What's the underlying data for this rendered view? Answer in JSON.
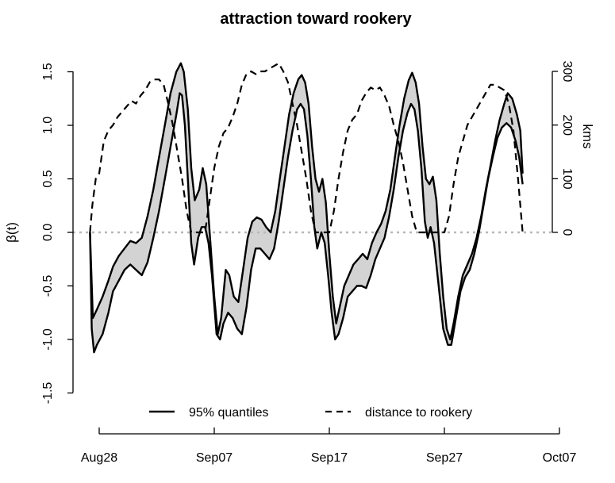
{
  "chart_data": {
    "type": "line",
    "title": "attraction toward rookery",
    "ylabel": "β(t)",
    "y2label": "kms",
    "xlim": [
      0,
      40
    ],
    "ylim": [
      -1.5,
      1.5
    ],
    "y2lim": [
      0,
      300
    ],
    "x_ticks": [
      {
        "x": 0,
        "label": "Aug28"
      },
      {
        "x": 10,
        "label": "Sep07"
      },
      {
        "x": 20,
        "label": "Sep17"
      },
      {
        "x": 30,
        "label": "Sep27"
      },
      {
        "x": 40,
        "label": "Oct07"
      }
    ],
    "y_ticks": [
      {
        "y": -1.5,
        "label": "-1.5"
      },
      {
        "y": -1.0,
        "label": "-1.0"
      },
      {
        "y": -0.5,
        "label": "-0.5"
      },
      {
        "y": 0.0,
        "label": "0.0"
      },
      {
        "y": 0.5,
        "label": "0.5"
      },
      {
        "y": 1.0,
        "label": "1.0"
      },
      {
        "y": 1.5,
        "label": "1.5"
      }
    ],
    "y2_ticks": [
      {
        "y": 0,
        "label": "0"
      },
      {
        "y": 100,
        "label": "100"
      },
      {
        "y": 200,
        "label": "200"
      },
      {
        "y": 300,
        "label": "300"
      }
    ],
    "reference_line": {
      "y": 0.0,
      "style": "dotted",
      "color": "#b8b8b8"
    },
    "legend": {
      "position": "bottom",
      "entries": [
        {
          "label": "95% quantiles",
          "style": "solid"
        },
        {
          "label": "distance to rookery",
          "style": "dashed"
        }
      ]
    },
    "series": [
      {
        "name": "upper 95% quantile",
        "axis": "left",
        "points": [
          [
            -0.8,
            0.0
          ],
          [
            -0.55,
            -0.8
          ],
          [
            -0.2,
            -0.72
          ],
          [
            0.3,
            -0.6
          ],
          [
            0.8,
            -0.45
          ],
          [
            1.2,
            -0.32
          ],
          [
            1.7,
            -0.22
          ],
          [
            2.2,
            -0.15
          ],
          [
            2.7,
            -0.08
          ],
          [
            3.2,
            -0.1
          ],
          [
            3.7,
            -0.05
          ],
          [
            4.2,
            0.15
          ],
          [
            4.7,
            0.4
          ],
          [
            5.2,
            0.7
          ],
          [
            5.7,
            1.0
          ],
          [
            6.2,
            1.3
          ],
          [
            6.7,
            1.5
          ],
          [
            7.1,
            1.58
          ],
          [
            7.35,
            1.5
          ],
          [
            7.7,
            1.15
          ],
          [
            8.0,
            0.6
          ],
          [
            8.3,
            0.3
          ],
          [
            8.7,
            0.4
          ],
          [
            9.0,
            0.6
          ],
          [
            9.3,
            0.45
          ],
          [
            9.6,
            0.0
          ],
          [
            10.0,
            -0.6
          ],
          [
            10.3,
            -0.95
          ],
          [
            10.6,
            -0.8
          ],
          [
            11.0,
            -0.35
          ],
          [
            11.3,
            -0.4
          ],
          [
            11.7,
            -0.6
          ],
          [
            12.1,
            -0.65
          ],
          [
            12.5,
            -0.35
          ],
          [
            12.9,
            -0.05
          ],
          [
            13.3,
            0.1
          ],
          [
            13.7,
            0.14
          ],
          [
            14.1,
            0.12
          ],
          [
            14.5,
            0.05
          ],
          [
            14.9,
            0.0
          ],
          [
            15.3,
            0.2
          ],
          [
            15.7,
            0.5
          ],
          [
            16.1,
            0.8
          ],
          [
            16.5,
            1.1
          ],
          [
            16.9,
            1.3
          ],
          [
            17.3,
            1.43
          ],
          [
            17.6,
            1.47
          ],
          [
            17.9,
            1.4
          ],
          [
            18.2,
            1.2
          ],
          [
            18.5,
            0.8
          ],
          [
            18.8,
            0.5
          ],
          [
            19.1,
            0.38
          ],
          [
            19.4,
            0.5
          ],
          [
            19.7,
            0.28
          ],
          [
            20.0,
            -0.2
          ],
          [
            20.3,
            -0.6
          ],
          [
            20.6,
            -0.85
          ],
          [
            20.9,
            -0.7
          ],
          [
            21.3,
            -0.5
          ],
          [
            21.7,
            -0.4
          ],
          [
            22.1,
            -0.3
          ],
          [
            22.5,
            -0.25
          ],
          [
            22.9,
            -0.2
          ],
          [
            23.3,
            -0.25
          ],
          [
            23.7,
            -0.1
          ],
          [
            24.1,
            0.0
          ],
          [
            24.5,
            0.08
          ],
          [
            24.9,
            0.2
          ],
          [
            25.3,
            0.4
          ],
          [
            25.7,
            0.7
          ],
          [
            26.1,
            1.0
          ],
          [
            26.5,
            1.25
          ],
          [
            26.9,
            1.42
          ],
          [
            27.2,
            1.49
          ],
          [
            27.5,
            1.4
          ],
          [
            27.8,
            1.2
          ],
          [
            28.1,
            0.8
          ],
          [
            28.4,
            0.5
          ],
          [
            28.7,
            0.45
          ],
          [
            29.0,
            0.52
          ],
          [
            29.3,
            0.3
          ],
          [
            29.6,
            -0.2
          ],
          [
            29.9,
            -0.6
          ],
          [
            30.2,
            -0.9
          ],
          [
            30.5,
            -1.0
          ],
          [
            30.8,
            -0.85
          ],
          [
            31.2,
            -0.6
          ],
          [
            31.6,
            -0.4
          ],
          [
            32.0,
            -0.3
          ],
          [
            32.4,
            -0.2
          ],
          [
            32.8,
            -0.05
          ],
          [
            33.2,
            0.15
          ],
          [
            33.6,
            0.4
          ],
          [
            34.0,
            0.62
          ],
          [
            34.4,
            0.85
          ],
          [
            34.8,
            1.05
          ],
          [
            35.2,
            1.2
          ],
          [
            35.5,
            1.3
          ],
          [
            35.9,
            1.25
          ],
          [
            36.3,
            1.1
          ],
          [
            36.6,
            0.95
          ],
          [
            36.8,
            0.55
          ]
        ]
      },
      {
        "name": "lower 95% quantile",
        "axis": "left",
        "points": [
          [
            -0.8,
            0.0
          ],
          [
            -0.65,
            -0.9
          ],
          [
            -0.45,
            -1.12
          ],
          [
            -0.2,
            -1.05
          ],
          [
            0.3,
            -0.95
          ],
          [
            0.8,
            -0.75
          ],
          [
            1.2,
            -0.55
          ],
          [
            1.7,
            -0.45
          ],
          [
            2.2,
            -0.35
          ],
          [
            2.7,
            -0.3
          ],
          [
            3.2,
            -0.35
          ],
          [
            3.7,
            -0.4
          ],
          [
            4.2,
            -0.28
          ],
          [
            4.7,
            -0.05
          ],
          [
            5.2,
            0.2
          ],
          [
            5.7,
            0.5
          ],
          [
            6.2,
            0.8
          ],
          [
            6.7,
            1.1
          ],
          [
            7.0,
            1.3
          ],
          [
            7.2,
            1.28
          ],
          [
            7.45,
            1.0
          ],
          [
            7.7,
            0.5
          ],
          [
            8.0,
            -0.1
          ],
          [
            8.25,
            -0.3
          ],
          [
            8.6,
            -0.05
          ],
          [
            8.9,
            0.05
          ],
          [
            9.2,
            0.05
          ],
          [
            9.5,
            -0.1
          ],
          [
            9.8,
            -0.4
          ],
          [
            10.2,
            -0.95
          ],
          [
            10.5,
            -1.0
          ],
          [
            10.8,
            -0.85
          ],
          [
            11.2,
            -0.75
          ],
          [
            11.6,
            -0.8
          ],
          [
            12.0,
            -0.9
          ],
          [
            12.4,
            -0.95
          ],
          [
            12.8,
            -0.7
          ],
          [
            13.2,
            -0.35
          ],
          [
            13.6,
            -0.15
          ],
          [
            14.0,
            -0.15
          ],
          [
            14.4,
            -0.2
          ],
          [
            14.8,
            -0.25
          ],
          [
            15.2,
            -0.15
          ],
          [
            15.6,
            0.1
          ],
          [
            16.0,
            0.4
          ],
          [
            16.4,
            0.7
          ],
          [
            16.8,
            0.95
          ],
          [
            17.2,
            1.15
          ],
          [
            17.5,
            1.2
          ],
          [
            17.8,
            1.15
          ],
          [
            18.1,
            0.9
          ],
          [
            18.4,
            0.5
          ],
          [
            18.7,
            0.05
          ],
          [
            18.95,
            -0.15
          ],
          [
            19.3,
            0.0
          ],
          [
            19.6,
            -0.1
          ],
          [
            19.9,
            -0.4
          ],
          [
            20.2,
            -0.75
          ],
          [
            20.5,
            -1.0
          ],
          [
            20.8,
            -0.95
          ],
          [
            21.2,
            -0.8
          ],
          [
            21.6,
            -0.6
          ],
          [
            22.0,
            -0.55
          ],
          [
            22.4,
            -0.5
          ],
          [
            22.8,
            -0.5
          ],
          [
            23.2,
            -0.52
          ],
          [
            23.6,
            -0.4
          ],
          [
            24.0,
            -0.25
          ],
          [
            24.4,
            -0.15
          ],
          [
            24.8,
            -0.05
          ],
          [
            25.2,
            0.15
          ],
          [
            25.6,
            0.4
          ],
          [
            26.0,
            0.7
          ],
          [
            26.4,
            0.95
          ],
          [
            26.8,
            1.12
          ],
          [
            27.1,
            1.2
          ],
          [
            27.4,
            1.15
          ],
          [
            27.7,
            0.95
          ],
          [
            28.0,
            0.6
          ],
          [
            28.3,
            0.1
          ],
          [
            28.55,
            -0.05
          ],
          [
            28.8,
            0.05
          ],
          [
            29.1,
            -0.1
          ],
          [
            29.5,
            -0.5
          ],
          [
            29.9,
            -0.9
          ],
          [
            30.3,
            -1.05
          ],
          [
            30.6,
            -1.05
          ],
          [
            31.0,
            -0.8
          ],
          [
            31.4,
            -0.55
          ],
          [
            31.8,
            -0.42
          ],
          [
            32.2,
            -0.35
          ],
          [
            32.6,
            -0.2
          ],
          [
            33.0,
            0.0
          ],
          [
            33.4,
            0.25
          ],
          [
            33.8,
            0.5
          ],
          [
            34.2,
            0.7
          ],
          [
            34.6,
            0.88
          ],
          [
            35.0,
            0.98
          ],
          [
            35.4,
            1.02
          ],
          [
            35.8,
            0.98
          ],
          [
            36.2,
            0.85
          ],
          [
            36.5,
            0.7
          ],
          [
            36.8,
            0.45
          ]
        ]
      },
      {
        "name": "distance to rookery",
        "axis": "right",
        "style": "dashed",
        "points": [
          [
            -0.8,
            0
          ],
          [
            -0.6,
            50
          ],
          [
            -0.3,
            100
          ],
          [
            0.0,
            110
          ],
          [
            0.4,
            170
          ],
          [
            0.8,
            190
          ],
          [
            1.2,
            200
          ],
          [
            1.6,
            215
          ],
          [
            2.0,
            225
          ],
          [
            2.4,
            235
          ],
          [
            2.8,
            245
          ],
          [
            3.2,
            240
          ],
          [
            3.6,
            255
          ],
          [
            4.0,
            265
          ],
          [
            4.4,
            280
          ],
          [
            4.8,
            285
          ],
          [
            5.2,
            285
          ],
          [
            5.6,
            275
          ],
          [
            6.0,
            240
          ],
          [
            6.4,
            200
          ],
          [
            6.8,
            150
          ],
          [
            7.2,
            100
          ],
          [
            7.6,
            40
          ],
          [
            8.0,
            0
          ],
          [
            8.4,
            0
          ],
          [
            8.8,
            0
          ],
          [
            9.2,
            0
          ],
          [
            9.6,
            60
          ],
          [
            10.0,
            120
          ],
          [
            10.4,
            160
          ],
          [
            10.8,
            185
          ],
          [
            11.2,
            195
          ],
          [
            11.6,
            215
          ],
          [
            12.0,
            240
          ],
          [
            12.4,
            275
          ],
          [
            12.8,
            295
          ],
          [
            13.2,
            300
          ],
          [
            13.6,
            295
          ],
          [
            14.0,
            300
          ],
          [
            14.4,
            300
          ],
          [
            14.8,
            305
          ],
          [
            15.2,
            310
          ],
          [
            15.6,
            315
          ],
          [
            16.0,
            300
          ],
          [
            16.4,
            280
          ],
          [
            16.8,
            240
          ],
          [
            17.2,
            200
          ],
          [
            17.6,
            150
          ],
          [
            18.0,
            100
          ],
          [
            18.4,
            40
          ],
          [
            18.8,
            0
          ],
          [
            19.2,
            0
          ],
          [
            19.6,
            0
          ],
          [
            20.0,
            0
          ],
          [
            20.4,
            40
          ],
          [
            20.8,
            100
          ],
          [
            21.2,
            150
          ],
          [
            21.6,
            190
          ],
          [
            22.0,
            210
          ],
          [
            22.4,
            220
          ],
          [
            22.8,
            245
          ],
          [
            23.2,
            260
          ],
          [
            23.6,
            270
          ],
          [
            24.0,
            265
          ],
          [
            24.4,
            270
          ],
          [
            24.8,
            255
          ],
          [
            25.2,
            235
          ],
          [
            25.6,
            200
          ],
          [
            26.0,
            170
          ],
          [
            26.4,
            130
          ],
          [
            26.8,
            80
          ],
          [
            27.2,
            30
          ],
          [
            27.6,
            0
          ],
          [
            28.0,
            0
          ],
          [
            28.4,
            0
          ],
          [
            28.8,
            0
          ],
          [
            29.2,
            0
          ],
          [
            29.6,
            0
          ],
          [
            30.0,
            0
          ],
          [
            30.4,
            30
          ],
          [
            30.8,
            90
          ],
          [
            31.2,
            140
          ],
          [
            31.6,
            170
          ],
          [
            32.0,
            200
          ],
          [
            32.4,
            215
          ],
          [
            32.8,
            230
          ],
          [
            33.2,
            245
          ],
          [
            33.6,
            260
          ],
          [
            34.0,
            275
          ],
          [
            34.4,
            275
          ],
          [
            34.8,
            270
          ],
          [
            35.2,
            265
          ],
          [
            35.6,
            240
          ],
          [
            36.0,
            190
          ],
          [
            36.4,
            100
          ],
          [
            36.8,
            0
          ]
        ]
      }
    ]
  }
}
